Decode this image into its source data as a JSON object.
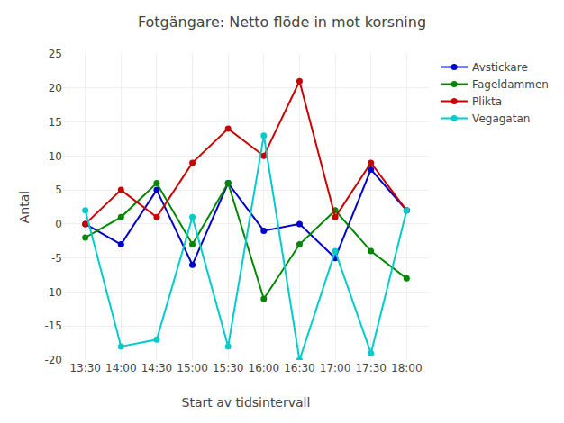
{
  "chart_data": {
    "type": "line",
    "title": "Fotgängare: Netto flöde in mot korsning",
    "x_label": "Start av tidsintervall",
    "y_label": "Antal",
    "categories": [
      "13:30",
      "14:00",
      "14:30",
      "15:00",
      "15:30",
      "16:00",
      "16:30",
      "17:00",
      "17:30",
      "18:00"
    ],
    "series": [
      {
        "name": "Avstickare",
        "color": "#0000cc",
        "marker": "circle",
        "values": [
          0,
          -3,
          5,
          -6,
          6,
          -1,
          0,
          -5,
          8,
          2
        ]
      },
      {
        "name": "Fageldammen",
        "color": "#008800",
        "marker": "circle",
        "values": [
          -2,
          1,
          6,
          -3,
          6,
          -11,
          -3,
          2,
          -4,
          -8
        ]
      },
      {
        "name": "Plikta",
        "color": "#cc0000",
        "marker": "circle",
        "values": [
          0,
          5,
          1,
          9,
          14,
          10,
          21,
          1,
          9,
          2
        ]
      },
      {
        "name": "Vegagatan",
        "color": "#00cccc",
        "marker": "circle",
        "values": [
          2,
          -18,
          -17,
          1,
          -18,
          13,
          -20,
          -4,
          -19,
          2
        ]
      }
    ],
    "ylim": [
      -20,
      25
    ],
    "yticks": [
      -20,
      -15,
      -10,
      -5,
      0,
      5,
      10,
      15,
      20,
      25
    ],
    "grid": true,
    "legend": "upper right"
  }
}
